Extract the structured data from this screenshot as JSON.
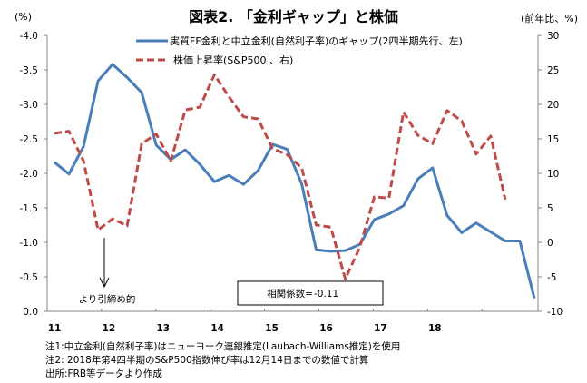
{
  "title": "図表2. 「金利ギャップ」と株価",
  "unit_left": "(%)",
  "unit_right": "(前年比、%)",
  "notes": [
    "注1:中立金利(自然利子率)はニューヨーク連銀推定(Laubach-Williams推定)を使用",
    "注2: 2018年第4四半期のS&P500指数伸び率は12月14日までの数値で計算",
    "出所:FRB等データより作成"
  ],
  "colors": {
    "gap": "#4a7ebb",
    "stock": "#be4b48",
    "axis": "#868686"
  },
  "chart_data": {
    "type": "line",
    "title": "図表2. 「金利ギャップ」と株価",
    "x_tick_labels": [
      "11",
      "12",
      "13",
      "14",
      "15",
      "16",
      "17",
      "18"
    ],
    "x_frequency": "quarterly",
    "left_axis": {
      "label": "(%)",
      "ylim": [
        0.0,
        -4.0
      ],
      "ticks": [
        "-4.0",
        "-3.5",
        "-3.0",
        "-2.5",
        "-2.0",
        "-1.5",
        "-1.0",
        "-0.5",
        "0.0"
      ],
      "inverted": true
    },
    "right_axis": {
      "label": "(前年比、%)",
      "ylim": [
        -10,
        30
      ],
      "ticks": [
        "30",
        "25",
        "20",
        "15",
        "10",
        "5",
        "0",
        "-5",
        "-10"
      ]
    },
    "legend_position": "top",
    "series": [
      {
        "name": "実質FF金利と中立金利(自然利子率)のギャップ(2四半期先行、左)",
        "axis": "left",
        "style": "solid",
        "values": [
          -2.16,
          -1.99,
          -2.39,
          -3.34,
          -3.58,
          -3.39,
          -3.17,
          -2.41,
          -2.2,
          -2.34,
          -2.13,
          -1.88,
          -1.97,
          -1.84,
          -2.04,
          -2.42,
          -2.35,
          -1.85,
          -0.89,
          -0.87,
          -0.88,
          -0.97,
          -1.33,
          -1.41,
          -1.53,
          -1.92,
          -2.08,
          -1.39,
          -1.14,
          -1.28,
          -1.15,
          -1.02,
          -1.02,
          -0.19
        ]
      },
      {
        "name": "株価上昇率(S&P500 、右)",
        "axis": "right",
        "style": "dashed",
        "values": [
          15.8,
          16.1,
          11.8,
          1.8,
          3.4,
          2.4,
          14.3,
          15.7,
          11.8,
          19.2,
          19.6,
          24.3,
          21.1,
          18.2,
          17.9,
          13.6,
          12.7,
          10.8,
          2.5,
          2.2,
          -5.3,
          -0.7,
          6.6,
          6.4,
          18.9,
          15.5,
          14.3,
          19.1,
          17.6,
          12.8,
          15.4,
          6.2
        ]
      }
    ],
    "annotations": [
      {
        "text": "より引締め的",
        "arrow": "down"
      },
      {
        "text_label": "相関係数=",
        "text_value": "-0.11"
      }
    ]
  }
}
